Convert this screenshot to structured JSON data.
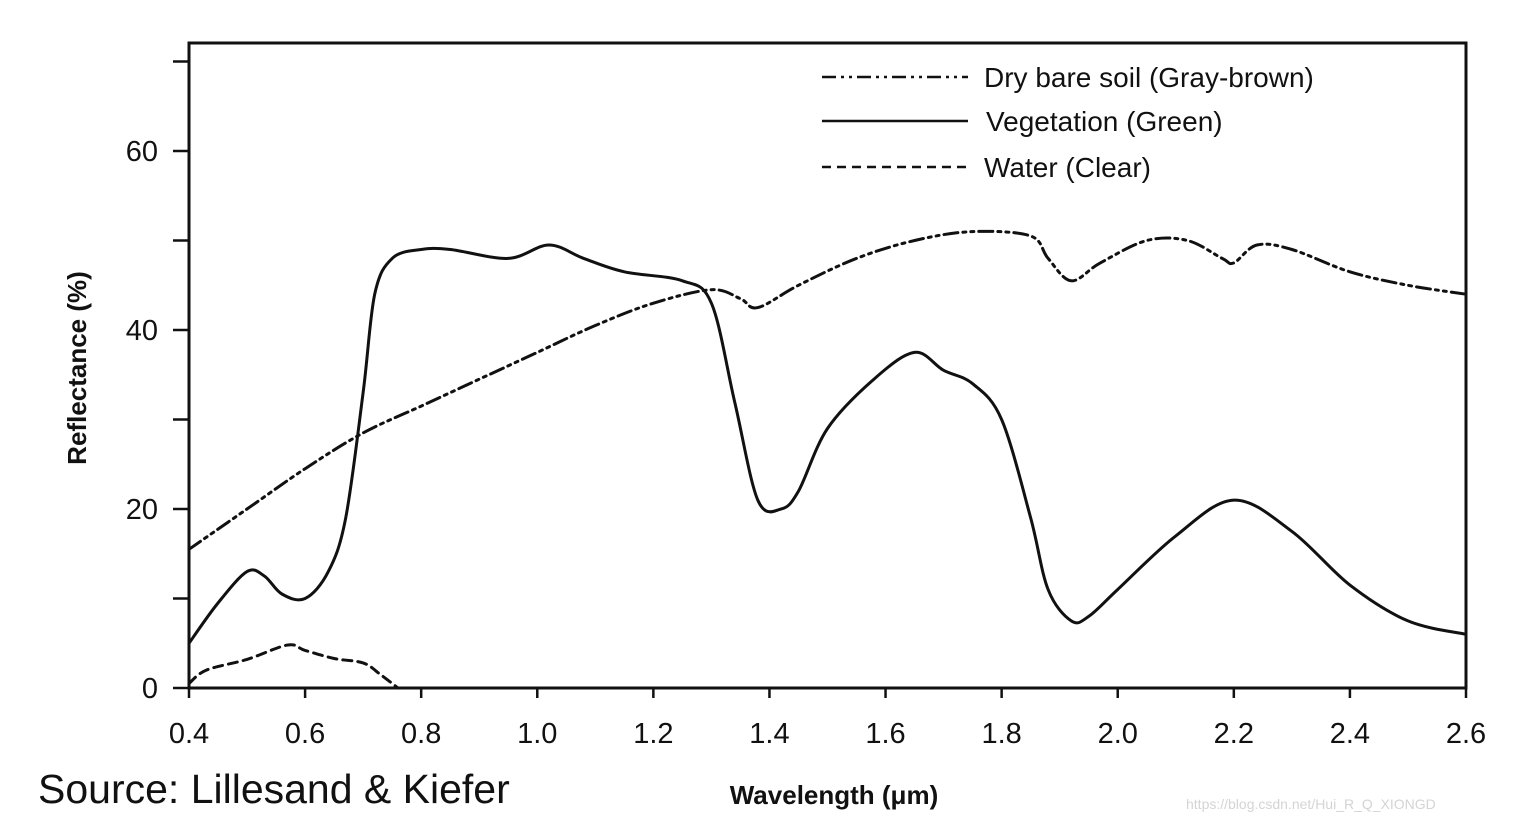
{
  "source": "Source: Lillesand & Kiefer",
  "watermark": "https://blog.csdn.net/Hui_R_Q_XIONGD",
  "chart_data": {
    "type": "line",
    "title": "",
    "xlabel": "Wavelength (μm)",
    "ylabel": "Reflectance (%)",
    "xlim": [
      0.4,
      2.6
    ],
    "ylim": [
      0,
      70
    ],
    "xticks": [
      0.4,
      0.6,
      0.8,
      1.0,
      1.2,
      1.4,
      1.6,
      1.8,
      2.0,
      2.2,
      2.4,
      2.6
    ],
    "xtick_labels": [
      "0.4",
      "0.6",
      "0.8",
      "1.0",
      "1.2",
      "1.4",
      "1.6",
      "1.8",
      "2.0",
      "2.2",
      "2.4",
      "2.6"
    ],
    "yticks": [
      0,
      10,
      20,
      30,
      40,
      50,
      60,
      70
    ],
    "ytick_labels": [
      "0",
      "",
      "20",
      "",
      "40",
      "",
      "60",
      ""
    ],
    "grid": false,
    "legend_position": "top-right",
    "series": [
      {
        "name": "Dry bare soil (Gray-brown)",
        "style": "dash-dot-dot",
        "color": "#111111",
        "x": [
          0.4,
          0.5,
          0.6,
          0.7,
          0.8,
          0.9,
          1.0,
          1.1,
          1.2,
          1.3,
          1.35,
          1.38,
          1.45,
          1.55,
          1.65,
          1.75,
          1.85,
          1.88,
          1.92,
          1.97,
          2.05,
          2.12,
          2.18,
          2.2,
          2.24,
          2.3,
          2.4,
          2.5,
          2.6
        ],
        "y": [
          15.5,
          20,
          24.5,
          28.5,
          31.5,
          34.5,
          37.5,
          40.5,
          43,
          44.5,
          43.5,
          42.5,
          45,
          48,
          50,
          51,
          50.5,
          48,
          45.5,
          47.5,
          50,
          50,
          48,
          47.5,
          49.5,
          49,
          46.5,
          45,
          44
        ]
      },
      {
        "name": "Vegetation (Green)",
        "style": "solid",
        "color": "#111111",
        "x": [
          0.4,
          0.45,
          0.5,
          0.53,
          0.56,
          0.6,
          0.64,
          0.67,
          0.7,
          0.72,
          0.75,
          0.8,
          0.85,
          0.95,
          1.02,
          1.08,
          1.15,
          1.25,
          1.3,
          1.34,
          1.38,
          1.42,
          1.45,
          1.5,
          1.58,
          1.65,
          1.7,
          1.75,
          1.8,
          1.85,
          1.88,
          1.92,
          1.95,
          2.0,
          2.1,
          2.2,
          2.3,
          2.4,
          2.5,
          2.6
        ],
        "y": [
          5,
          9.5,
          13,
          12.5,
          10.5,
          10,
          13,
          19,
          33,
          44,
          48,
          49,
          49,
          48,
          49.5,
          48,
          46.5,
          45.5,
          43,
          32,
          21,
          20,
          22,
          29,
          34.5,
          37.5,
          35.5,
          34,
          30,
          19,
          11,
          7.5,
          8,
          11,
          17,
          21,
          17.5,
          11.5,
          7.5,
          6
        ]
      },
      {
        "name": "Water (Clear)",
        "style": "dashed",
        "color": "#111111",
        "x": [
          0.4,
          0.43,
          0.5,
          0.57,
          0.6,
          0.65,
          0.7,
          0.73,
          0.76
        ],
        "y": [
          0.5,
          2,
          3.2,
          4.8,
          4.2,
          3.3,
          2.8,
          1.5,
          0
        ]
      }
    ]
  }
}
